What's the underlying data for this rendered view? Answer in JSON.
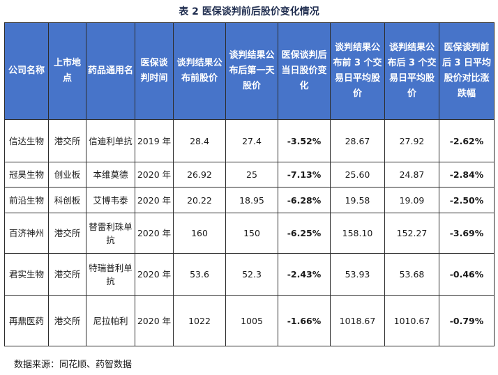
{
  "caption": "表 2  医保谈判前后股价变化情况",
  "columns": [
    "公司名称",
    "上市地点",
    "药品通用名",
    "医保谈判时间",
    "谈判结果公布前股价",
    "谈判结果公布后第一天股价",
    "医保谈判后当日股价变化",
    "谈判结果公布前 3 个交易日平均股价",
    "谈判结果公布后 3 个交易日平均股价",
    "医保谈判前后 3 日平均股价对比涨跌幅"
  ],
  "rows": [
    [
      "信达生物",
      "港交所",
      "信迪利单抗",
      "2019 年",
      "28.4",
      "27.4",
      "-3.52%",
      "28.67",
      "27.92",
      "-2.62%"
    ],
    [
      "冠昊生物",
      "创业板",
      "本维莫德",
      "2020 年",
      "26.92",
      "25",
      "-7.13%",
      "25.60",
      "24.87",
      "-2.84%"
    ],
    [
      "前沿生物",
      "科创板",
      "艾博韦泰",
      "2020 年",
      "20.22",
      "18.95",
      "-6.28%",
      "19.58",
      "19.09",
      "-2.50%"
    ],
    [
      "百济神州",
      "港交所",
      "替雷利珠单抗",
      "2020 年",
      "160",
      "150",
      "-6.25%",
      "158.10",
      "152.27",
      "-3.69%"
    ],
    [
      "君实生物",
      "港交所",
      "特瑞普利单抗",
      "2020 年",
      "53.6",
      "52.3",
      "-2.43%",
      "53.93",
      "53.68",
      "-0.46%"
    ],
    [
      "再鼎医药",
      "港交所",
      "尼拉帕利",
      "2020 年",
      "1022",
      "1005",
      "-1.66%",
      "1018.67",
      "1010.67",
      "-0.79%"
    ]
  ],
  "source": "数据来源：同花顺、药智数据",
  "colors": {
    "header_bg": "#4774c9",
    "header_text": "#ffffff",
    "caption_text": "#1f2d4f",
    "border": "#2d2d2d"
  }
}
